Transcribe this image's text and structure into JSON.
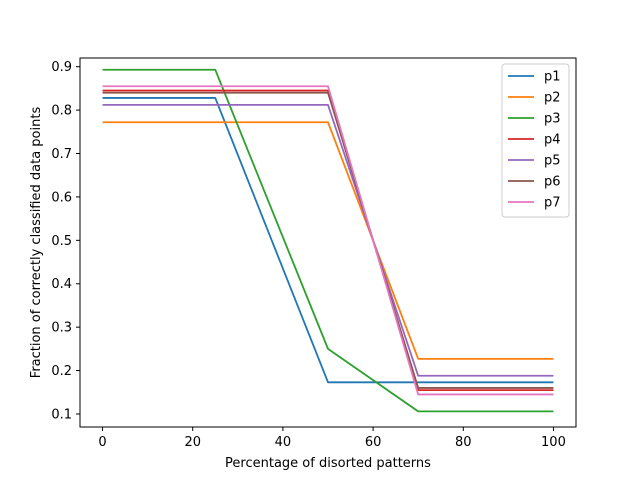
{
  "chart_data": {
    "type": "line",
    "title": "",
    "xlabel": "Percentage of disorted patterns",
    "ylabel": "Fraction of correctly classified data points",
    "xlim": [
      -5,
      105
    ],
    "ylim": [
      0.07,
      0.92
    ],
    "xticks": [
      0,
      20,
      40,
      60,
      80,
      100
    ],
    "yticks": [
      0.1,
      0.2,
      0.3,
      0.4,
      0.5,
      0.6,
      0.7,
      0.8,
      0.9
    ],
    "x": [
      0,
      25,
      50,
      70,
      100
    ],
    "grid": false,
    "legend_position": "top-right",
    "series": [
      {
        "name": "p1",
        "color": "#1f77b4",
        "values": [
          0.828,
          0.828,
          0.173,
          0.173,
          0.173
        ]
      },
      {
        "name": "p2",
        "color": "#ff7f0e",
        "values": [
          0.772,
          0.772,
          0.772,
          0.227,
          0.227
        ]
      },
      {
        "name": "p3",
        "color": "#2ca02c",
        "values": [
          0.893,
          0.893,
          0.25,
          0.106,
          0.106
        ]
      },
      {
        "name": "p4",
        "color": "#d62728",
        "values": [
          0.845,
          0.845,
          0.845,
          0.155,
          0.155
        ]
      },
      {
        "name": "p5",
        "color": "#9467bd",
        "values": [
          0.812,
          0.812,
          0.812,
          0.188,
          0.188
        ]
      },
      {
        "name": "p6",
        "color": "#8c564b",
        "values": [
          0.84,
          0.84,
          0.84,
          0.16,
          0.16
        ]
      },
      {
        "name": "p7",
        "color": "#e377c2",
        "values": [
          0.855,
          0.855,
          0.855,
          0.145,
          0.145
        ]
      }
    ]
  }
}
